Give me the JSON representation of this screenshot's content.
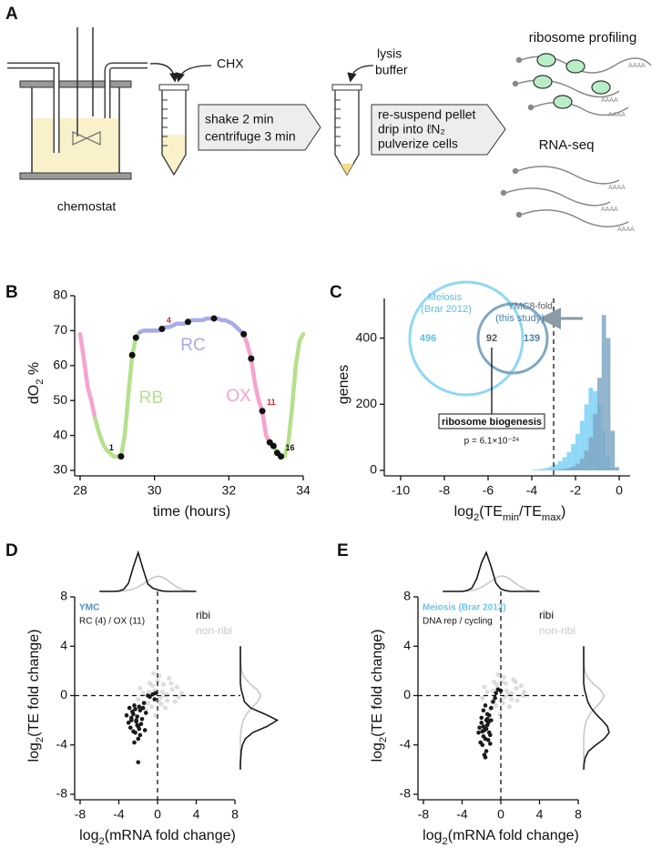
{
  "panel_labels": [
    "A",
    "B",
    "C",
    "D",
    "E"
  ],
  "schematic": {
    "reagent": "CHX",
    "step_1": [
      "shake 2 min",
      "centrifuge 3 min"
    ],
    "reagent_2": [
      "lysis",
      "buffer"
    ],
    "step_2": [
      "re-suspend pellet",
      "drip into ℓN₂",
      "pulverize cells"
    ],
    "vessel_label": "chemostat",
    "ribo_label": "ribosome profiling",
    "rna_label": "RNA-seq",
    "poly_a": "AAAA"
  },
  "chart_data": [
    {
      "type": "line",
      "ylabel": [
        "dO",
        "2",
        " %"
      ],
      "xlabel": "time (hours)",
      "xlim": [
        28,
        34
      ],
      "ylim": [
        30,
        80
      ],
      "xticks": [
        28,
        30,
        32,
        34
      ],
      "yticks": [
        30,
        40,
        50,
        60,
        70,
        80
      ],
      "x": [
        28.0,
        28.1,
        28.2,
        28.3,
        28.4,
        28.5,
        28.6,
        28.7,
        28.8,
        28.9,
        29.0,
        29.1,
        29.2,
        29.3,
        29.4,
        29.5,
        29.6,
        29.7,
        29.8,
        29.9,
        30.0,
        30.1,
        30.2,
        30.3,
        30.4,
        30.5,
        30.6,
        30.7,
        30.8,
        30.9,
        31.0,
        31.1,
        31.2,
        31.3,
        31.4,
        31.5,
        31.6,
        31.7,
        31.8,
        31.9,
        32.0,
        32.1,
        32.2,
        32.3,
        32.4,
        32.5,
        32.6,
        32.7,
        32.8,
        32.9,
        33.0,
        33.1,
        33.2,
        33.3,
        33.4,
        33.5,
        33.6,
        33.7,
        33.8,
        33.9,
        34.0
      ],
      "series": [
        {
          "name": "OX",
          "color": "#f5a3cf",
          "values": [
            69,
            62,
            54,
            50,
            45,
            null,
            null,
            null,
            null,
            null,
            null,
            null,
            null,
            null,
            null,
            null,
            null,
            null,
            null,
            null,
            null,
            null,
            null,
            null,
            null,
            null,
            null,
            null,
            null,
            null,
            null,
            null,
            null,
            null,
            null,
            null,
            null,
            null,
            null,
            null,
            null,
            null,
            null,
            null,
            69,
            66,
            62,
            55,
            50,
            47,
            40,
            38,
            37,
            null,
            null,
            null,
            null,
            null,
            null,
            null,
            null
          ]
        },
        {
          "name": "RB",
          "color": "#b5e08c",
          "values": [
            null,
            null,
            null,
            null,
            45,
            41,
            38,
            36,
            35,
            34,
            34,
            34,
            40,
            52,
            63,
            68,
            69.5,
            null,
            null,
            null,
            null,
            null,
            null,
            null,
            null,
            null,
            null,
            null,
            null,
            null,
            null,
            null,
            null,
            null,
            null,
            null,
            null,
            null,
            null,
            null,
            null,
            null,
            null,
            null,
            null,
            null,
            null,
            null,
            null,
            null,
            null,
            null,
            37,
            35,
            34,
            34,
            38,
            48,
            60,
            67,
            69
          ]
        },
        {
          "name": "RC",
          "color": "#a9aae6",
          "values": [
            null,
            null,
            null,
            null,
            null,
            null,
            null,
            null,
            null,
            null,
            null,
            null,
            null,
            null,
            null,
            null,
            69.5,
            70,
            70,
            70,
            70,
            70,
            70.5,
            71,
            71,
            71.5,
            72,
            72,
            72,
            72.5,
            73,
            73,
            73,
            73,
            73.5,
            73.5,
            73.5,
            73.5,
            73,
            73,
            72.5,
            72,
            71,
            70,
            69,
            null,
            null,
            null,
            null,
            null,
            null,
            null,
            null,
            null,
            null,
            null,
            null,
            null,
            null,
            null,
            null
          ]
        }
      ],
      "points": {
        "x": [
          29.1,
          29.4,
          29.5,
          30.2,
          30.9,
          31.6,
          32.4,
          32.6,
          32.9,
          33.1,
          33.2,
          33.3,
          33.4
        ],
        "y": [
          34,
          63,
          68,
          70.5,
          72.5,
          73.5,
          69,
          62,
          47,
          38,
          37,
          35,
          34
        ],
        "labels": [
          "1",
          null,
          null,
          "4",
          null,
          null,
          null,
          null,
          "11",
          null,
          null,
          null,
          "16"
        ],
        "label_colors": [
          "#111111",
          null,
          null,
          "#d62728",
          null,
          null,
          null,
          null,
          "#d62728",
          null,
          null,
          null,
          "#111111"
        ]
      }
    },
    {
      "type": "histogram",
      "ylabel": "genes",
      "xlabel": [
        "log",
        "2",
        "(TE",
        "min",
        "/TE",
        "max",
        ")"
      ],
      "xlim": [
        -10.5,
        0.5
      ],
      "ylim": [
        0,
        520
      ],
      "xticks": [
        -10,
        -8,
        -6,
        -4,
        -2,
        0
      ],
      "yticks": [
        0,
        200,
        400
      ],
      "bins": [
        -4,
        -3.8,
        -3.6,
        -3.4,
        -3.2,
        -3,
        -2.8,
        -2.6,
        -2.4,
        -2.2,
        -2,
        -1.8,
        -1.6,
        -1.4,
        -1.2,
        -1,
        -0.8,
        -0.6,
        -0.4,
        -0.2,
        0
      ],
      "series": [
        {
          "name": "Meiosis (Brar 2012)",
          "color": "#8fd8f5",
          "values": [
            2,
            3,
            5,
            8,
            12,
            18,
            28,
            40,
            55,
            80,
            110,
            150,
            200,
            250,
            240,
            200,
            120,
            40,
            8,
            1
          ]
        },
        {
          "name": "YMC (this study)",
          "color": "#7fa7c4",
          "values": [
            0,
            0,
            0,
            0,
            1,
            2,
            3,
            5,
            8,
            12,
            20,
            35,
            60,
            100,
            170,
            280,
            470,
            400,
            120,
            10
          ]
        }
      ],
      "threshold": -3,
      "threshold_label": "> 8-fold",
      "venn_counts": [
        496,
        92,
        139
      ],
      "overlap_label": "ribosome biogenesis",
      "p_value": "p = 6.1×10⁻²⁴"
    },
    {
      "type": "scatter",
      "group_label": "YMC",
      "group_color": "#4a90c2",
      "comparison": "RC (4) / OX (11)",
      "xlabel": [
        "log",
        "2",
        "(mRNA fold change)"
      ],
      "ylabel": [
        "log",
        "2",
        "(TE fold change)"
      ],
      "xlim": [
        -8,
        8
      ],
      "ylim": [
        -8,
        8
      ],
      "xticks": [
        -8,
        -4,
        0,
        4,
        8
      ],
      "yticks": [
        -8,
        -4,
        0,
        4,
        8
      ],
      "density_grid": [
        -6,
        -5.5,
        -5,
        -4.5,
        -4,
        -3.5,
        -3,
        -2.5,
        -2,
        -1.5,
        -1,
        -0.5,
        0,
        0.5,
        1,
        1.5,
        2,
        2.5,
        3,
        3.5,
        4
      ],
      "series": [
        {
          "name": "ribi",
          "color": "#1a1a1a",
          "x": [
            -2.5,
            -2.2,
            -1.8,
            -2.0,
            -2.7,
            -3.0,
            -1.5,
            -2.3,
            -1.9,
            -2.6,
            -2.1,
            -1.7,
            -2.8,
            -2.4,
            -1.6,
            -2.0,
            -3.2,
            -2.2,
            -1.4,
            -2.5,
            -1.9,
            -2.3,
            -2.7,
            -1.8,
            -2.1,
            -0.5,
            -0.2,
            -0.8,
            -1.0,
            -0.3,
            -2.0,
            -2.4,
            -1.2,
            -2.9,
            -1.3
          ],
          "values": [
            -1.5,
            -2.0,
            -1.2,
            -2.5,
            -1.8,
            -2.2,
            -1.0,
            -3.0,
            -2.7,
            -1.3,
            -1.7,
            -2.3,
            -2.6,
            -0.8,
            -1.9,
            -3.5,
            -1.6,
            -2.1,
            -0.6,
            -2.9,
            -0.9,
            -1.1,
            -2.0,
            -3.2,
            -2.4,
            0.1,
            0.2,
            -0.1,
            0.0,
            -0.3,
            -5.4,
            -3.8,
            -1.4,
            -1.0,
            -2.8
          ],
          "x_density": [
            0,
            0,
            0,
            0,
            0.01,
            0.05,
            0.2,
            0.6,
            0.95,
            0.55,
            0.18,
            0.08,
            0.04,
            0.01,
            0,
            0,
            0,
            0,
            0,
            0,
            0
          ],
          "y_density": [
            0,
            0,
            0.01,
            0.02,
            0.05,
            0.12,
            0.3,
            0.65,
            0.9,
            0.6,
            0.25,
            0.1,
            0.06,
            0.02,
            0,
            0,
            0,
            0,
            0,
            0,
            0
          ]
        },
        {
          "name": "non-ribi",
          "color": "#c8c8c8",
          "x": [
            0.5,
            -0.5,
            1.0,
            -1.0,
            1.5,
            0.0,
            -1.5,
            2.0,
            0.8,
            -0.8,
            0.3,
            -0.3,
            1.2,
            -1.2,
            2.5,
            -2.0,
            0.6,
            -0.6,
            1.8,
            0.2,
            -0.2,
            1.0,
            -1.8,
            0.4,
            2.2,
            -0.9,
            1.4,
            0.1,
            -0.4,
            0.7
          ],
          "values": [
            0.3,
            0.8,
            -0.4,
            -0.6,
            0.5,
            1.2,
            0.2,
            0.7,
            -1.0,
            1.0,
            -0.2,
            0.4,
            1.4,
            -1.2,
            0.2,
            -0.3,
            0.9,
            -0.9,
            -0.5,
            1.6,
            -1.6,
            0.1,
            0.6,
            -0.7,
            -0.1,
            0.3,
            1.0,
            -0.5,
            1.8,
            0.0
          ],
          "x_density": [
            0,
            0,
            0,
            0,
            0,
            0.01,
            0.03,
            0.06,
            0.11,
            0.18,
            0.26,
            0.33,
            0.37,
            0.35,
            0.28,
            0.19,
            0.11,
            0.05,
            0.02,
            0.01,
            0
          ],
          "y_density": [
            0,
            0,
            0,
            0,
            0,
            0,
            0.01,
            0.03,
            0.07,
            0.15,
            0.28,
            0.42,
            0.5,
            0.4,
            0.22,
            0.09,
            0.03,
            0.01,
            0,
            0,
            0
          ]
        }
      ]
    },
    {
      "type": "scatter",
      "group_label": "Meiosis (Brar 2012)",
      "group_color": "#6cc5ea",
      "comparison": "DNA rep / cycling",
      "xlabel": [
        "log",
        "2",
        "(mRNA fold change)"
      ],
      "ylabel": [
        "log",
        "2",
        "(TE fold change)"
      ],
      "xlim": [
        -8,
        8
      ],
      "ylim": [
        -8,
        8
      ],
      "xticks": [
        -8,
        -4,
        0,
        4,
        8
      ],
      "yticks": [
        -8,
        -4,
        0,
        4,
        8
      ],
      "density_grid": [
        -6,
        -5.5,
        -5,
        -4.5,
        -4,
        -3.5,
        -3,
        -2.5,
        -2,
        -1.5,
        -1,
        -0.5,
        0,
        0.5,
        1,
        1.5,
        2,
        2.5,
        3,
        3.5,
        4
      ],
      "series": [
        {
          "name": "ribi",
          "color": "#1a1a1a",
          "x": [
            -1.5,
            -1.8,
            -1.2,
            -2.0,
            -1.6,
            -1.3,
            -1.9,
            -1.4,
            -1.7,
            -2.2,
            -1.1,
            -1.5,
            -1.8,
            -1.0,
            -2.1,
            -1.6,
            -1.3,
            -1.9,
            -0.8,
            -0.5,
            -0.3,
            0.0,
            -1.4,
            -1.7,
            -1.2,
            -2.3,
            -1.5,
            -1.0,
            -0.6,
            -1.8,
            -1.6,
            -1.3,
            -2.0,
            -1.1,
            -1.4
          ],
          "values": [
            -2.0,
            -2.5,
            -3.0,
            -1.8,
            -3.5,
            -2.2,
            -4.0,
            -1.5,
            -2.8,
            -2.6,
            -3.2,
            -4.5,
            -1.2,
            -2.0,
            -3.8,
            -0.8,
            -3.6,
            -2.9,
            -0.5,
            0.2,
            0.5,
            0.4,
            -2.4,
            -4.8,
            -1.6,
            -3.0,
            -2.7,
            -1.0,
            -0.2,
            -3.3,
            -5.0,
            -2.1,
            -2.2,
            -3.9,
            -1.9
          ],
          "x_density": [
            0,
            0,
            0,
            0,
            0,
            0.02,
            0.08,
            0.3,
            0.7,
            0.95,
            0.6,
            0.2,
            0.06,
            0.02,
            0,
            0,
            0,
            0,
            0,
            0,
            0
          ],
          "y_density": [
            0,
            0.01,
            0.04,
            0.12,
            0.3,
            0.5,
            0.62,
            0.58,
            0.45,
            0.3,
            0.18,
            0.1,
            0.06,
            0.02,
            0,
            0,
            0,
            0,
            0,
            0,
            0
          ]
        },
        {
          "name": "non-ribi",
          "color": "#c8c8c8",
          "x": [
            0.6,
            -0.4,
            1.1,
            -0.9,
            1.6,
            0.1,
            -1.4,
            2.1,
            0.9,
            -0.7,
            0.4,
            -0.2,
            1.3,
            -1.1,
            2.4,
            -1.9,
            0.5,
            -0.5,
            1.7,
            0.3,
            -0.1,
            1.1,
            -1.7,
            0.2,
            2.3,
            -0.8,
            1.5,
            0.0,
            -0.3,
            0.8
          ],
          "values": [
            0.4,
            0.9,
            -0.3,
            -0.5,
            0.6,
            1.1,
            0.3,
            0.8,
            -0.9,
            1.1,
            -0.1,
            0.5,
            1.3,
            -1.1,
            0.3,
            -0.2,
            1.0,
            -0.8,
            -0.4,
            1.5,
            -1.5,
            0.2,
            0.7,
            -0.6,
            0.0,
            0.4,
            1.1,
            -0.4,
            1.7,
            0.1
          ],
          "x_density": [
            0,
            0,
            0,
            0,
            0,
            0.01,
            0.02,
            0.05,
            0.1,
            0.17,
            0.25,
            0.33,
            0.38,
            0.36,
            0.29,
            0.2,
            0.12,
            0.06,
            0.02,
            0.01,
            0
          ],
          "y_density": [
            0,
            0,
            0,
            0,
            0,
            0,
            0.01,
            0.03,
            0.07,
            0.15,
            0.28,
            0.42,
            0.5,
            0.4,
            0.22,
            0.09,
            0.03,
            0.01,
            0,
            0,
            0
          ]
        }
      ]
    }
  ]
}
